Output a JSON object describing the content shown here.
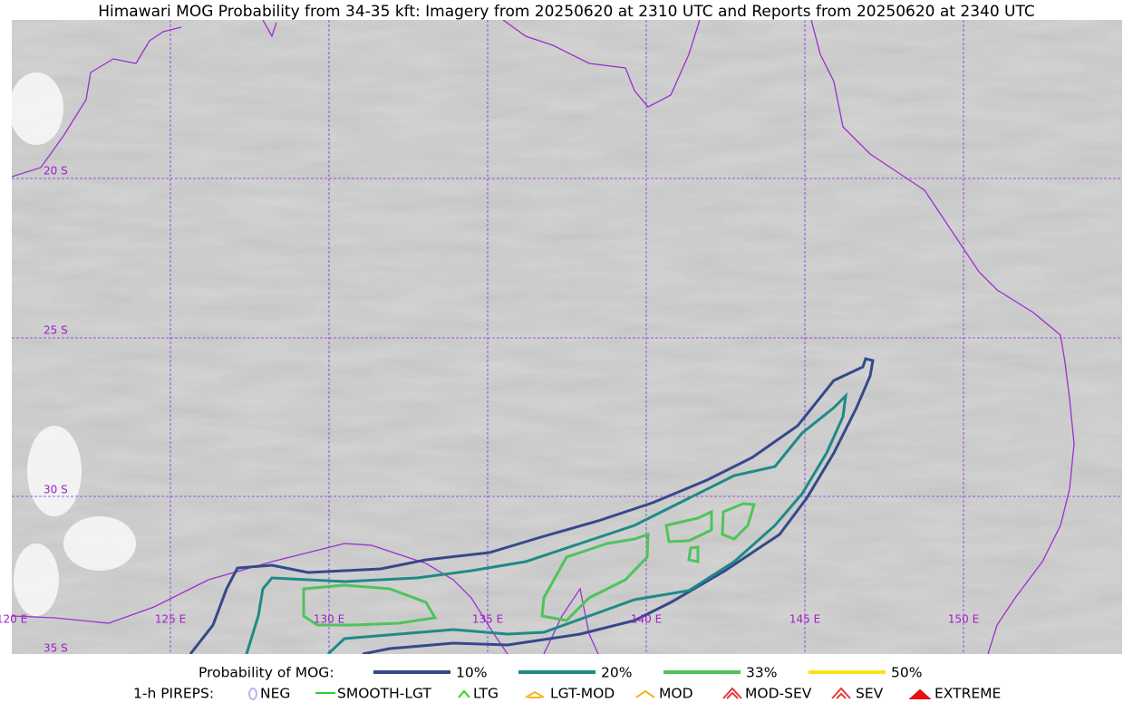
{
  "title": "Himawari MOG Probability from 34-35 kft: Imagery from 20250620 at 2310 UTC and Reports from 20250620 at 2340 UTC",
  "map": {
    "lat_labels": [
      "20 S",
      "25 S",
      "30 S",
      "35 S"
    ],
    "lon_labels": [
      "120 E",
      "125 E",
      "130 E",
      "135 E",
      "140 E",
      "145 E",
      "150 E"
    ]
  },
  "legend": {
    "probability": {
      "label": "Probability of MOG:",
      "items": [
        {
          "name": "10%",
          "color": "#35498a"
        },
        {
          "name": "20%",
          "color": "#1f8a87"
        },
        {
          "name": "33%",
          "color": "#4fc35b"
        },
        {
          "name": "50%",
          "color": "#f8e318"
        }
      ]
    },
    "pireps": {
      "label": "1-h PIREPS:",
      "items": [
        {
          "name": "NEG",
          "color": "#b9b4f0"
        },
        {
          "name": "SMOOTH-LGT",
          "color": "#32cd32"
        },
        {
          "name": "LTG",
          "color": "#22dd22"
        },
        {
          "name": "LGT-MOD",
          "color": "#f5b21e"
        },
        {
          "name": "MOD",
          "color": "#f5b21e"
        },
        {
          "name": "MOD-SEV",
          "color": "#e83a3a"
        },
        {
          "name": "SEV",
          "color": "#e83a3a"
        },
        {
          "name": "EXTREME",
          "color": "#e81010"
        }
      ]
    }
  }
}
